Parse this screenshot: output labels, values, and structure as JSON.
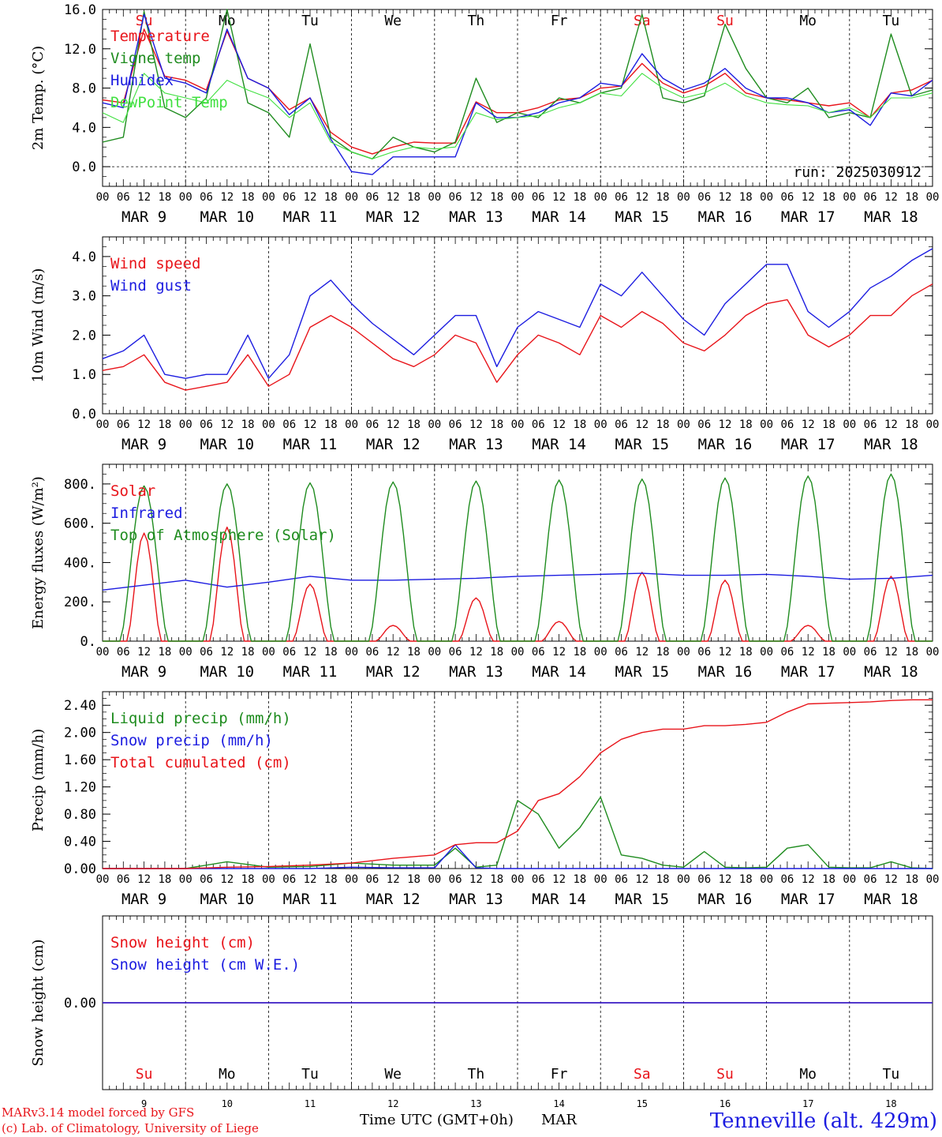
{
  "run_label": "run: 2025030912",
  "footer": {
    "model_line": "MARv3.14 model forced by GFS",
    "lab_line": "(c) Lab. of Climatology, University of Liege",
    "xlabel": "Time UTC (GMT+0h)",
    "month": "MAR",
    "station": "Tenneville (alt. 429m)"
  },
  "days": [
    {
      "abbr": "Su",
      "date": "MAR  9",
      "num": "9",
      "weekend": true
    },
    {
      "abbr": "Mo",
      "date": "MAR 10",
      "num": "10",
      "weekend": false
    },
    {
      "abbr": "Tu",
      "date": "MAR 11",
      "num": "11",
      "weekend": false
    },
    {
      "abbr": "We",
      "date": "MAR 12",
      "num": "12",
      "weekend": false
    },
    {
      "abbr": "Th",
      "date": "MAR 13",
      "num": "13",
      "weekend": false
    },
    {
      "abbr": "Fr",
      "date": "MAR 14",
      "num": "14",
      "weekend": false
    },
    {
      "abbr": "Sa",
      "date": "MAR 15",
      "num": "15",
      "weekend": true
    },
    {
      "abbr": "Su",
      "date": "MAR 16",
      "num": "16",
      "weekend": true
    },
    {
      "abbr": "Mo",
      "date": "MAR 17",
      "num": "17",
      "weekend": false
    },
    {
      "abbr": "Tu",
      "date": "MAR 18",
      "num": "18",
      "weekend": false
    }
  ],
  "hour_ticks": [
    "00",
    "06",
    "12",
    "18"
  ],
  "colors": {
    "red": "#e8141a",
    "green": "#1f8c1f",
    "blue": "#1c1ce0",
    "lightgreen": "#40e040",
    "weekend": "#e8141a"
  },
  "chart_data": [
    {
      "type": "line",
      "ylabel": "2m Temp. (°C)",
      "ylim": [
        -2,
        16
      ],
      "yticks": [
        "0.0",
        "4.0",
        "8.0",
        "12.0",
        "16.0"
      ],
      "ytick_values": [
        0,
        4,
        8,
        12,
        16
      ],
      "zero_line": true,
      "x_hours": [
        0,
        6,
        12,
        18,
        24,
        30,
        36,
        42,
        48,
        54,
        60,
        66,
        72,
        78,
        84,
        90,
        96,
        102,
        108,
        114,
        120,
        126,
        132,
        138,
        144,
        150,
        156,
        162,
        168,
        174,
        180,
        186,
        192,
        198,
        204,
        210,
        216,
        222,
        228,
        234,
        240
      ],
      "series": [
        {
          "name": "Temperature",
          "color": "red",
          "values": [
            6.8,
            6.5,
            14.0,
            9.2,
            8.8,
            7.8,
            13.8,
            9.0,
            8.0,
            5.8,
            7.0,
            3.5,
            2.0,
            1.3,
            2.0,
            2.5,
            2.4,
            2.4,
            6.6,
            5.5,
            5.5,
            6.0,
            6.8,
            7.0,
            8.0,
            8.2,
            10.5,
            8.5,
            7.5,
            8.2,
            9.5,
            7.5,
            7.0,
            6.8,
            6.5,
            6.2,
            6.5,
            5.0,
            7.5,
            7.8,
            8.8
          ]
        },
        {
          "name": "Vigne temp",
          "color": "green",
          "values": [
            2.5,
            3.0,
            15.8,
            6.0,
            5.0,
            7.0,
            16.0,
            6.5,
            5.5,
            3.0,
            12.5,
            3.0,
            1.5,
            0.8,
            3.0,
            2.0,
            1.5,
            2.5,
            9.0,
            4.5,
            5.5,
            5.0,
            7.0,
            6.5,
            7.5,
            8.0,
            15.5,
            7.0,
            6.5,
            7.2,
            14.5,
            10.0,
            7.0,
            6.5,
            8.0,
            5.0,
            5.5,
            5.0,
            13.5,
            7.2,
            7.8
          ]
        },
        {
          "name": "Humidex",
          "color": "blue",
          "values": [
            6.5,
            6.0,
            15.5,
            9.0,
            8.5,
            7.5,
            14.0,
            9.0,
            8.0,
            5.3,
            7.0,
            2.8,
            -0.5,
            -0.8,
            1.0,
            1.0,
            1.0,
            1.0,
            6.5,
            5.0,
            5.0,
            5.5,
            6.5,
            7.0,
            8.5,
            8.2,
            11.5,
            9.0,
            7.8,
            8.5,
            10.0,
            8.0,
            7.0,
            7.0,
            6.5,
            5.5,
            5.8,
            4.2,
            7.5,
            7.2,
            8.8
          ]
        },
        {
          "name": "DewPoint Temp",
          "color": "lightgreen",
          "values": [
            5.5,
            4.5,
            9.5,
            7.5,
            7.0,
            6.5,
            8.8,
            7.8,
            7.0,
            5.0,
            6.5,
            2.5,
            1.5,
            0.8,
            1.5,
            2.0,
            1.8,
            2.0,
            5.5,
            4.8,
            5.0,
            5.2,
            6.0,
            6.5,
            7.5,
            7.2,
            9.5,
            8.0,
            7.0,
            7.5,
            8.5,
            7.2,
            6.5,
            6.3,
            6.2,
            5.5,
            6.0,
            5.0,
            7.0,
            7.0,
            7.5
          ]
        }
      ]
    },
    {
      "type": "line",
      "ylabel": "10m Wind (m/s)",
      "ylim": [
        0,
        4.5
      ],
      "yticks": [
        "0.0",
        "1.0",
        "2.0",
        "3.0",
        "4.0"
      ],
      "ytick_values": [
        0,
        1,
        2,
        3,
        4
      ],
      "x_hours": [
        0,
        6,
        12,
        18,
        24,
        30,
        36,
        42,
        48,
        54,
        60,
        66,
        72,
        78,
        84,
        90,
        96,
        102,
        108,
        114,
        120,
        126,
        132,
        138,
        144,
        150,
        156,
        162,
        168,
        174,
        180,
        186,
        192,
        198,
        204,
        210,
        216,
        222,
        228,
        234,
        240
      ],
      "series": [
        {
          "name": "Wind speed",
          "color": "red",
          "values": [
            1.1,
            1.2,
            1.5,
            0.8,
            0.6,
            0.7,
            0.8,
            1.5,
            0.7,
            1.0,
            2.2,
            2.5,
            2.2,
            1.8,
            1.4,
            1.2,
            1.5,
            2.0,
            1.8,
            0.8,
            1.5,
            2.0,
            1.8,
            1.5,
            2.5,
            2.2,
            2.6,
            2.3,
            1.8,
            1.6,
            2.0,
            2.5,
            2.8,
            2.9,
            2.0,
            1.7,
            2.0,
            2.5,
            2.5,
            3.0,
            3.3
          ]
        },
        {
          "name": "Wind gust",
          "color": "blue",
          "values": [
            1.4,
            1.6,
            2.0,
            1.0,
            0.9,
            1.0,
            1.0,
            2.0,
            0.9,
            1.5,
            3.0,
            3.4,
            2.8,
            2.3,
            1.9,
            1.5,
            2.0,
            2.5,
            2.5,
            1.2,
            2.2,
            2.6,
            2.4,
            2.2,
            3.3,
            3.0,
            3.6,
            3.0,
            2.4,
            2.0,
            2.8,
            3.3,
            3.8,
            3.8,
            2.6,
            2.2,
            2.6,
            3.2,
            3.5,
            3.9,
            4.2
          ]
        }
      ]
    },
    {
      "type": "line",
      "ylabel": "Energy fluxes (W/m²)",
      "ylim": [
        0,
        900
      ],
      "yticks": [
        "0.",
        "200.",
        "400.",
        "600.",
        "800."
      ],
      "ytick_values": [
        0,
        200,
        400,
        600,
        800
      ],
      "day_peak_hour": 12,
      "solar_peaks": [
        550,
        580,
        290,
        80,
        220,
        100,
        350,
        310,
        80,
        330
      ],
      "toa_peaks": [
        790,
        800,
        805,
        810,
        815,
        820,
        825,
        830,
        840,
        850
      ],
      "x_hours": [
        0,
        12,
        24,
        36,
        48,
        60,
        72,
        84,
        96,
        108,
        120,
        132,
        144,
        156,
        168,
        180,
        192,
        204,
        216,
        228,
        240
      ],
      "series": [
        {
          "name": "Solar",
          "color": "red",
          "values": []
        },
        {
          "name": "Infrared",
          "color": "blue",
          "values": [
            260,
            285,
            310,
            275,
            300,
            330,
            310,
            310,
            315,
            320,
            330,
            335,
            340,
            345,
            335,
            335,
            340,
            330,
            315,
            320,
            335
          ]
        },
        {
          "name": "Top of Atmosphere (Solar)",
          "color": "green",
          "values": []
        }
      ]
    },
    {
      "type": "line",
      "ylabel": "Precip (mm/h)",
      "ylim": [
        0,
        2.6
      ],
      "yticks": [
        "0.00",
        "0.40",
        "0.80",
        "1.20",
        "1.60",
        "2.00",
        "2.40"
      ],
      "ytick_values": [
        0,
        0.4,
        0.8,
        1.2,
        1.6,
        2.0,
        2.4
      ],
      "x_hours": [
        0,
        24,
        36,
        48,
        60,
        72,
        84,
        96,
        102,
        108,
        114,
        120,
        126,
        132,
        138,
        144,
        150,
        156,
        162,
        168,
        174,
        180,
        186,
        192,
        198,
        204,
        210,
        216,
        222,
        228,
        234,
        240
      ],
      "series": [
        {
          "name": "Liquid precip (mm/h)",
          "color": "green",
          "values": [
            0,
            0,
            0.1,
            0.02,
            0.03,
            0.08,
            0.05,
            0.05,
            0.3,
            0.02,
            0.05,
            1.0,
            0.8,
            0.3,
            0.6,
            1.05,
            0.2,
            0.15,
            0.05,
            0.02,
            0.25,
            0.02,
            0.01,
            0.02,
            0.3,
            0.35,
            0.02,
            0.01,
            0.01,
            0.1,
            0.01,
            0.0
          ]
        },
        {
          "name": "Snow precip (mm/h)",
          "color": "blue",
          "values": [
            0,
            0,
            0,
            0,
            0,
            0.02,
            0.01,
            0.01,
            0.35,
            0.01,
            0,
            0,
            0,
            0,
            0,
            0,
            0,
            0,
            0,
            0,
            0,
            0,
            0,
            0,
            0,
            0,
            0,
            0,
            0,
            0,
            0,
            0
          ]
        },
        {
          "name": "Total cumulated (cm)",
          "color": "red",
          "values": [
            0,
            0,
            0.02,
            0.03,
            0.05,
            0.08,
            0.15,
            0.2,
            0.35,
            0.38,
            0.38,
            0.55,
            1.0,
            1.1,
            1.35,
            1.7,
            1.9,
            2.0,
            2.05,
            2.05,
            2.1,
            2.1,
            2.12,
            2.15,
            2.3,
            2.42,
            2.43,
            2.44,
            2.45,
            2.47,
            2.48,
            2.48
          ]
        }
      ]
    },
    {
      "type": "line",
      "ylabel": "Snow height (cm)",
      "ylim": [
        -1,
        1
      ],
      "yticks": [
        "0.00"
      ],
      "ytick_values": [
        0
      ],
      "x_hours": [
        0,
        240
      ],
      "series": [
        {
          "name": "Snow height (cm)",
          "color": "red",
          "values": [
            0,
            0
          ]
        },
        {
          "name": "Snow height (cm W.E.)",
          "color": "blue",
          "values": [
            0,
            0
          ]
        }
      ]
    }
  ]
}
